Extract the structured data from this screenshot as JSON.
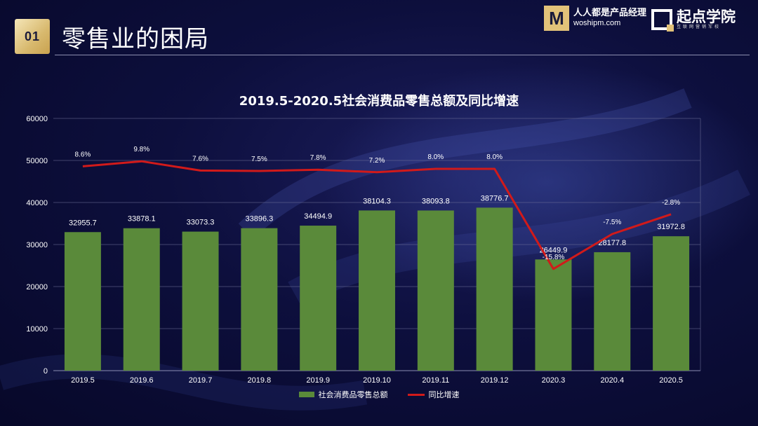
{
  "header": {
    "badge": "01",
    "title": "零售业的困局"
  },
  "logos": {
    "woshipm_mark": "M",
    "woshipm_name": "人人都是产品经理",
    "woshipm_url": "woshipm.com",
    "qidian_name": "起点学院",
    "qidian_sub": "互联网营销军校"
  },
  "colors": {
    "bar": "#5a8a3a",
    "line": "#d11a1a",
    "accent": "#e2c279"
  },
  "chart_data": {
    "type": "bar+line",
    "title": "2019.5-2020.5社会消费品零售总额及同比增速",
    "categories": [
      "2019.5",
      "2019.6",
      "2019.7",
      "2019.8",
      "2019.9",
      "2019.10",
      "2019.11",
      "2019.12",
      "2020.3",
      "2020.4",
      "2020.5"
    ],
    "series": [
      {
        "name": "社会消费品零售总额",
        "type": "bar",
        "values": [
          32955.7,
          33878.1,
          33073.3,
          33896.3,
          34494.9,
          38104.3,
          38093.8,
          38776.7,
          26449.9,
          28177.8,
          31972.8
        ],
        "labels": [
          "32955.7",
          "33878.1",
          "33073.3",
          "33896.3",
          "34494.9",
          "38104.3",
          "38093.8",
          "38776.7",
          "26449.9",
          "28177.8",
          "31972.8"
        ]
      },
      {
        "name": "同比增速",
        "type": "line",
        "values": [
          8.6,
          9.8,
          7.6,
          7.5,
          7.8,
          7.2,
          8.0,
          8.0,
          -15.8,
          -7.5,
          -2.8
        ],
        "labels": [
          "8.6%",
          "9.8%",
          "7.6%",
          "7.5%",
          "7.8%",
          "7.2%",
          "8.0%",
          "8.0%",
          "-15.8%",
          "-7.5%",
          "-2.8%"
        ]
      }
    ],
    "ylim": [
      0,
      60000
    ],
    "yticks": [
      0,
      10000,
      20000,
      30000,
      40000,
      50000,
      60000
    ],
    "ytick_labels": [
      "0",
      "10000",
      "20000",
      "30000",
      "40000",
      "50000",
      "60000"
    ],
    "line_value_range": [
      -40,
      20
    ],
    "legend": "bottom",
    "grid": true
  }
}
